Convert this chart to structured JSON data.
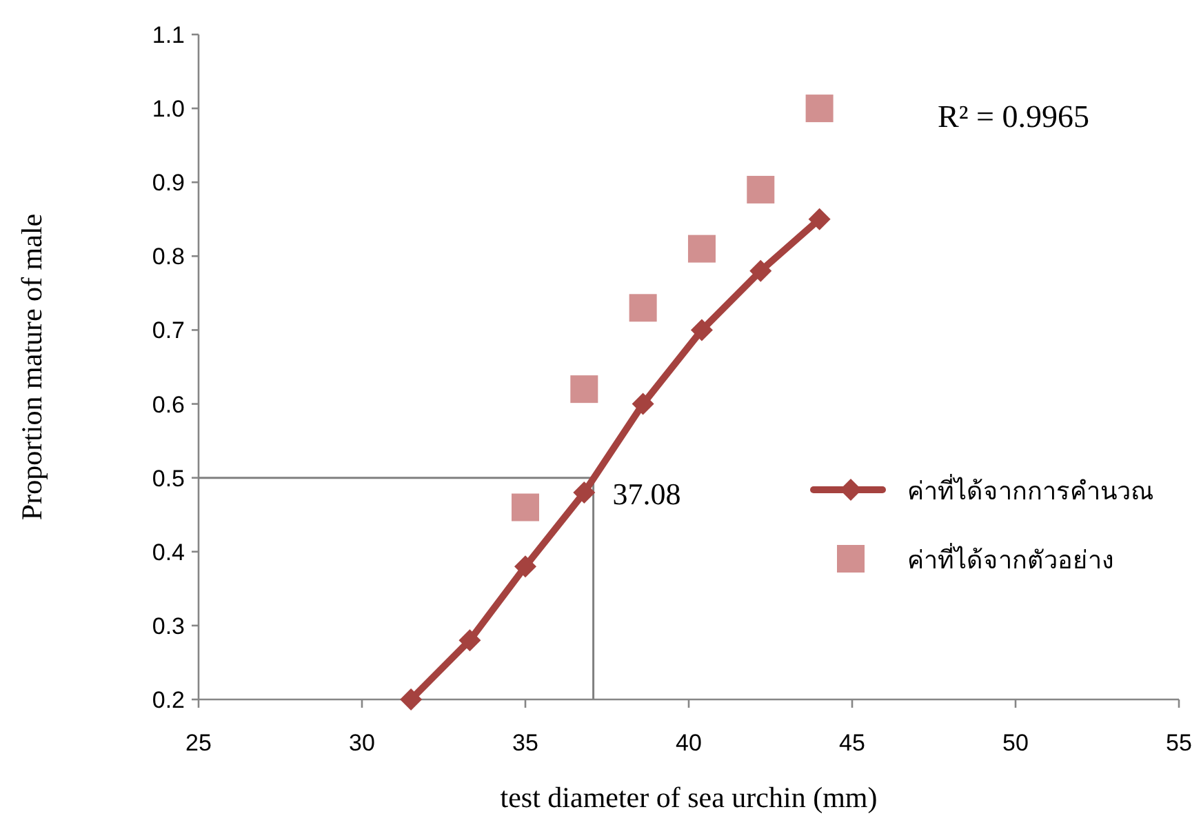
{
  "chart_data": {
    "type": "line",
    "xlabel": "test diameter of sea urchin (mm)",
    "ylabel": "Proportion mature of male",
    "xlim": [
      25,
      55
    ],
    "xticks": [
      25,
      30,
      35,
      40,
      45,
      50,
      55
    ],
    "ylim": [
      0.2,
      1.1
    ],
    "yticks": [
      {
        "value": 0.2,
        "label": "0.2"
      },
      {
        "value": 0.3,
        "label": "0.3"
      },
      {
        "value": 0.4,
        "label": "0.4"
      },
      {
        "value": 0.5,
        "label": "0.5"
      },
      {
        "value": 0.6,
        "label": "0.6"
      },
      {
        "value": 0.7,
        "label": "0.7"
      },
      {
        "value": 0.8,
        "label": "0.8"
      },
      {
        "value": 0.9,
        "label": "0.9"
      },
      {
        "value": 1.0,
        "label": "1.0"
      },
      {
        "value": 1.1,
        "label": "1.1"
      }
    ],
    "grid": false,
    "legend": "right",
    "series": [
      {
        "name": "ค่าที่ได้จากการคำนวณ",
        "type": "line",
        "color": "#a5423f",
        "marker": "diamond",
        "line_style": "solid",
        "x": [
          31.5,
          33.3,
          35.0,
          36.8,
          38.6,
          40.4,
          42.2,
          44.0
        ],
        "values": [
          0.2,
          0.28,
          0.38,
          0.48,
          0.6,
          0.7,
          0.78,
          0.85
        ]
      },
      {
        "name": "ค่าที่ได้จากตัวอย่าง",
        "type": "scatter",
        "color": "#d29090",
        "marker": "square",
        "x": [
          35.0,
          36.8,
          38.6,
          40.4,
          42.2,
          44.0
        ],
        "values": [
          0.46,
          0.62,
          0.73,
          0.81,
          0.89,
          1.0
        ]
      }
    ],
    "ref_lines": [
      {
        "axis": "y",
        "value": 0.5,
        "color": "#808080"
      },
      {
        "axis": "x",
        "value": 37.08,
        "label": "37.08",
        "color": "#808080"
      }
    ],
    "annotations": [
      "R² = 0.9965"
    ]
  }
}
